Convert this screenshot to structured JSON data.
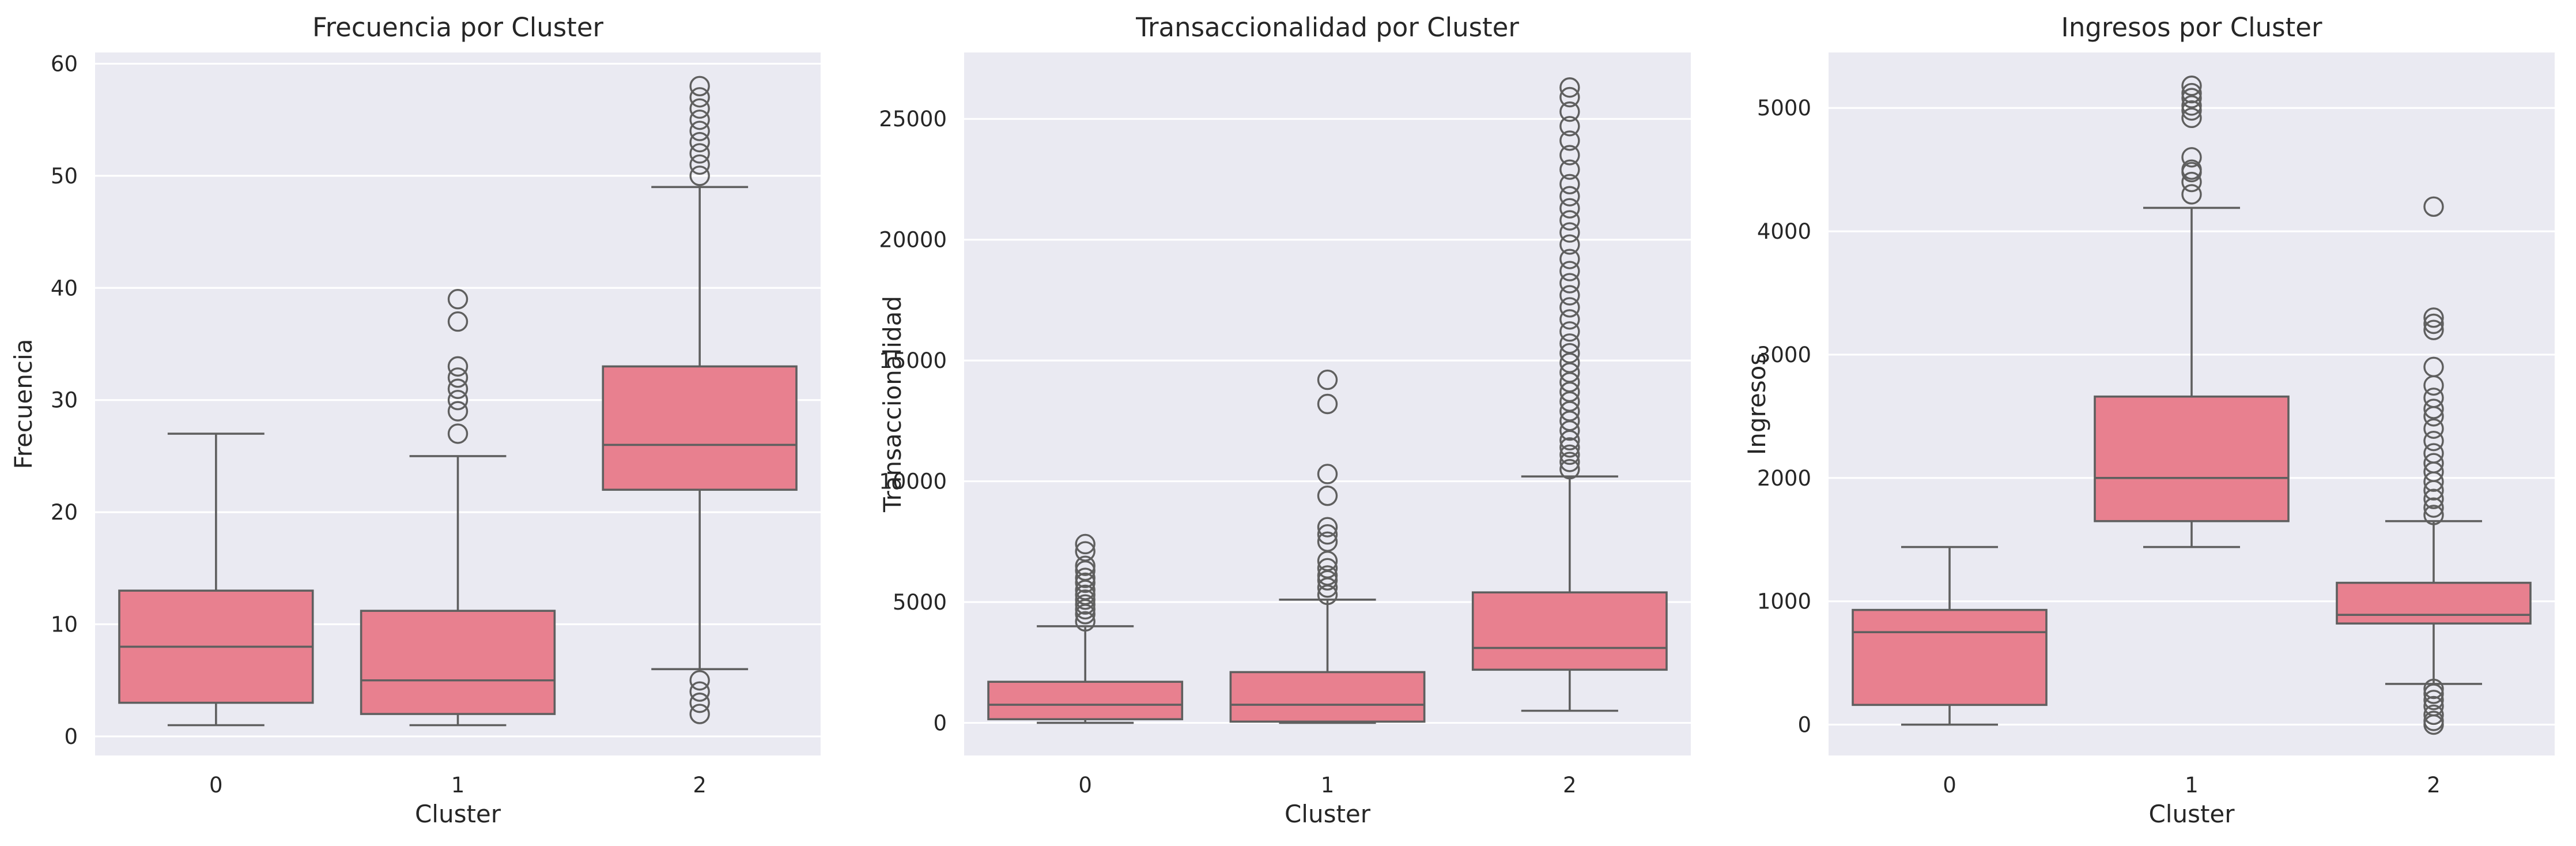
{
  "colors": {
    "axes_bg": "#EAEAF2",
    "grid": "#FFFFFF",
    "box_fill": "#E8808F",
    "line": "#5F5F5F",
    "text": "#262626"
  },
  "chart_data": [
    {
      "type": "box",
      "title": "Frecuencia por Cluster",
      "xlabel": "Cluster",
      "ylabel": "Frecuencia",
      "categories": [
        "0",
        "1",
        "2"
      ],
      "ylim": [
        -1.7,
        61.0
      ],
      "yticks": [
        0,
        10,
        20,
        30,
        40,
        50,
        60
      ],
      "grid": true,
      "boxes": [
        {
          "whislo": 1,
          "q1": 3,
          "med": 8,
          "q3": 13,
          "whishi": 27,
          "fliers": []
        },
        {
          "whislo": 1,
          "q1": 2,
          "med": 5,
          "q3": 11.2,
          "whishi": 25,
          "fliers": [
            27,
            29,
            30,
            31,
            32,
            33,
            37,
            39
          ]
        },
        {
          "whislo": 6,
          "q1": 22,
          "med": 26,
          "q3": 33,
          "whishi": 49,
          "fliers": [
            2,
            3,
            4,
            5,
            50,
            51,
            52,
            53,
            54,
            55,
            56,
            57,
            58
          ]
        }
      ]
    },
    {
      "type": "box",
      "title": "Transaccionalidad por Cluster",
      "xlabel": "Cluster",
      "ylabel": "Transaccionalidad",
      "categories": [
        "0",
        "1",
        "2"
      ],
      "ylim": [
        -1350,
        27750
      ],
      "yticks": [
        0,
        5000,
        10000,
        15000,
        20000,
        25000
      ],
      "grid": true,
      "boxes": [
        {
          "whislo": 0,
          "q1": 150,
          "med": 750,
          "q3": 1700,
          "whishi": 4000,
          "fliers": [
            4200,
            4500,
            4700,
            4900,
            5100,
            5300,
            5500,
            5800,
            6000,
            6300,
            6500,
            7100,
            7400
          ]
        },
        {
          "whislo": 0,
          "q1": 50,
          "med": 750,
          "q3": 2100,
          "whishi": 5100,
          "fliers": [
            5300,
            5600,
            5900,
            6100,
            6400,
            6700,
            7500,
            7800,
            8100,
            9400,
            10300,
            13200,
            14200
          ]
        },
        {
          "whislo": 500,
          "q1": 2200,
          "med": 3100,
          "q3": 5400,
          "whishi": 10200,
          "fliers": [
            10500,
            10800,
            11100,
            11400,
            11700,
            12100,
            12500,
            12900,
            13300,
            13700,
            14100,
            14500,
            14900,
            15300,
            15700,
            16200,
            16700,
            17200,
            17700,
            18200,
            18700,
            19200,
            19800,
            20300,
            20800,
            21300,
            21800,
            22300,
            22900,
            23500,
            24100,
            24700,
            25300,
            25900,
            26300
          ]
        }
      ]
    },
    {
      "type": "box",
      "title": "Ingresos por Cluster",
      "xlabel": "Cluster",
      "ylabel": "Ingresos",
      "categories": [
        "0",
        "1",
        "2"
      ],
      "ylim": [
        -250,
        5450
      ],
      "yticks": [
        0,
        1000,
        2000,
        3000,
        4000,
        5000
      ],
      "grid": true,
      "boxes": [
        {
          "whislo": 0,
          "q1": 160,
          "med": 750,
          "q3": 930,
          "whishi": 1440,
          "fliers": []
        },
        {
          "whislo": 1440,
          "q1": 1650,
          "med": 2000,
          "q3": 2660,
          "whishi": 4190,
          "fliers": [
            4300,
            4400,
            4480,
            4500,
            4600,
            4920,
            4980,
            5020,
            5080,
            5120,
            5180
          ]
        },
        {
          "whislo": 330,
          "q1": 820,
          "med": 890,
          "q3": 1150,
          "whishi": 1650,
          "fliers": [
            0,
            30,
            80,
            150,
            200,
            250,
            290,
            1700,
            1760,
            1830,
            1900,
            1970,
            2050,
            2120,
            2200,
            2300,
            2400,
            2500,
            2560,
            2650,
            2750,
            2900,
            3200,
            3250,
            3300,
            4200
          ]
        }
      ]
    }
  ]
}
